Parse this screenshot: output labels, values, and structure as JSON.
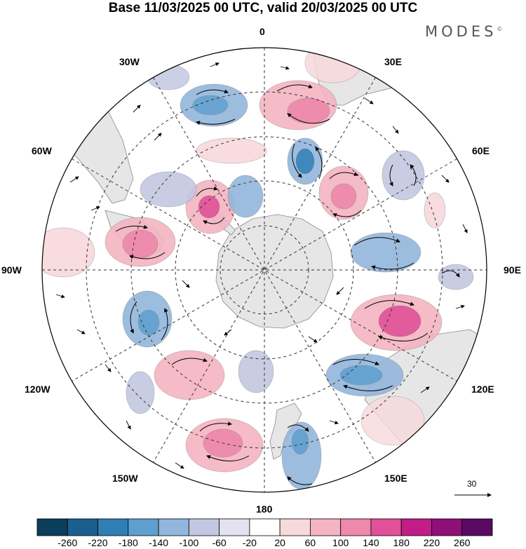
{
  "title": "Base 11/03/2025 00 UTC, valid 20/03/2025 00 UTC",
  "brand": "MODES",
  "brand_mark": "©",
  "longitude_labels": {
    "lon_0": "0",
    "lon_30E": "30E",
    "lon_60E": "60E",
    "lon_90E": "90E",
    "lon_120E": "120E",
    "lon_150E": "150E",
    "lon_180": "180",
    "lon_150W": "150W",
    "lon_120W": "120W",
    "lon_90W": "90W",
    "lon_60W": "60W",
    "lon_30W": "30W"
  },
  "reference_vector": "30",
  "colorbar": {
    "ticks": [
      "-260",
      "-220",
      "-180",
      "-140",
      "-100",
      "-60",
      "-20",
      "20",
      "60",
      "100",
      "140",
      "180",
      "220",
      "260"
    ],
    "colors": [
      "#0b3d5c",
      "#1a5f8e",
      "#2f7fb5",
      "#5e9fcf",
      "#93b6dc",
      "#c3c8e2",
      "#e3e2f0",
      "#ffffff",
      "#f8d9dc",
      "#f4b4c2",
      "#ee88ac",
      "#e05199",
      "#c21c86",
      "#8e0f78",
      "#5a0a63"
    ]
  },
  "colors": {
    "land": "#e6e6e6",
    "ocean": "#ffffff",
    "grid": "#333333"
  }
}
